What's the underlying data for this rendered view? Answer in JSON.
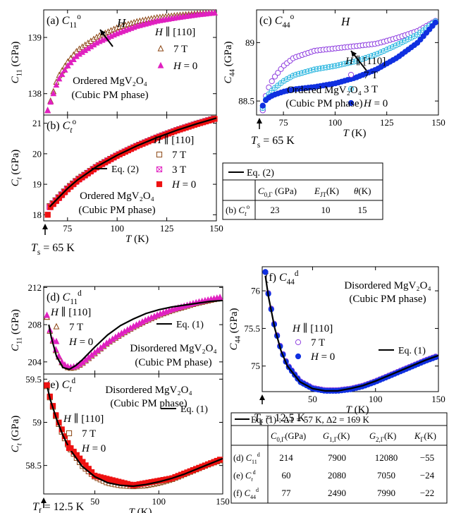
{
  "chart_data": [
    {
      "id": "a",
      "type": "scatter",
      "panel_label": "(a)",
      "symbol": "C",
      "symbol_sub": "11",
      "symbol_sup": "o",
      "ylabel": "C",
      "ylabel_sub": "11",
      "ylabel_unit": "(GPa)",
      "xlim": [
        63,
        150
      ],
      "ylim": [
        137.62,
        139.49
      ],
      "xticks": [],
      "yticks": [
        138,
        139
      ],
      "legend_title": "H ∥ [110]",
      "legend": [
        "7 T",
        "H = 0"
      ],
      "annotations": [
        "Ordered MgV₂O₄",
        "(Cubic PM phase)",
        "H"
      ],
      "series": [
        {
          "name": "7 T",
          "marker": "triangle-open",
          "color": "#8b4513",
          "x": [
            65,
            70,
            75,
            80,
            90,
            100,
            110,
            120,
            130,
            140,
            150
          ],
          "y": [
            137.7,
            138.28,
            138.56,
            138.77,
            139.01,
            139.17,
            139.28,
            139.35,
            139.39,
            139.42,
            139.44
          ]
        },
        {
          "name": "H = 0",
          "marker": "triangle-filled",
          "color": "#e020c0",
          "x": [
            65,
            70,
            75,
            80,
            90,
            100,
            110,
            120,
            130,
            140,
            150
          ],
          "y": [
            137.7,
            138.22,
            138.49,
            138.68,
            138.91,
            139.07,
            139.2,
            139.29,
            139.35,
            139.4,
            139.44
          ]
        }
      ]
    },
    {
      "id": "b",
      "type": "scatter",
      "panel_label": "(b)",
      "symbol": "C",
      "symbol_sub": "t",
      "symbol_sup": "o",
      "ylabel": "C",
      "ylabel_sub": "t",
      "ylabel_unit": "(GPa)",
      "xlim": [
        63,
        150
      ],
      "ylim": [
        17.8,
        21.27
      ],
      "xticks": [
        75,
        100,
        125,
        150
      ],
      "yticks": [
        18,
        19,
        20,
        21
      ],
      "xlabel": "T",
      "xlabel_unit": "(K)",
      "legend_title": "H ∥ [110]",
      "legend": [
        "7 T",
        "3 T",
        "H = 0"
      ],
      "fit_label": "Eq. (2)",
      "annotations": [
        "Ordered MgV₂O₄",
        "(Cubic PM phase)"
      ],
      "marker_text": "Tₛ = 65 K",
      "series": [
        {
          "name": "7 T",
          "marker": "square-open",
          "color": "#8b4513",
          "x": [
            66,
            70,
            75,
            80,
            90,
            100,
            110,
            120,
            130,
            140,
            150
          ],
          "y": [
            18.28,
            18.55,
            18.88,
            19.16,
            19.6,
            19.96,
            20.27,
            20.54,
            20.78,
            20.99,
            21.18
          ]
        },
        {
          "name": "3 T",
          "marker": "square-cross",
          "color": "#e020c0",
          "x": [
            66,
            70,
            75,
            80,
            90,
            100,
            110,
            120,
            130,
            140,
            150
          ],
          "y": [
            18.25,
            18.52,
            18.85,
            19.13,
            19.58,
            19.95,
            20.26,
            20.53,
            20.77,
            20.98,
            21.17
          ]
        },
        {
          "name": "H = 0",
          "marker": "square-filled",
          "color": "#ee1111",
          "x": [
            65,
            66,
            70,
            75,
            80,
            90,
            100,
            110,
            120,
            130,
            140,
            150
          ],
          "y": [
            18.0,
            18.22,
            18.5,
            18.83,
            19.12,
            19.57,
            19.94,
            20.25,
            20.52,
            20.76,
            20.97,
            21.16
          ]
        },
        {
          "name": "Eq. (2)",
          "marker": "line",
          "color": "#000000",
          "x": [
            66,
            70,
            75,
            80,
            90,
            100,
            110,
            120,
            130,
            140,
            150
          ],
          "y": [
            18.26,
            18.53,
            18.86,
            19.14,
            19.59,
            19.95,
            20.26,
            20.53,
            20.77,
            20.98,
            21.17
          ]
        }
      ]
    },
    {
      "id": "c",
      "type": "scatter",
      "panel_label": "(c)",
      "symbol": "C",
      "symbol_sub": "44",
      "symbol_sup": "o",
      "ylabel": "C",
      "ylabel_sub": "44",
      "ylabel_unit": "(GPa)",
      "xlim": [
        62,
        150
      ],
      "ylim": [
        88.38,
        89.28
      ],
      "xticks": [
        75,
        100,
        125,
        150
      ],
      "yticks": [
        88.5,
        89.0
      ],
      "xlabel": "T",
      "xlabel_unit": "(K)",
      "legend_title": "H ∥ [110]",
      "legend": [
        "7 T",
        "3 T",
        "H = 0"
      ],
      "annotations": [
        "Ordered MgV₂O₄",
        "(Cubic PM phase)",
        "H"
      ],
      "marker_text": "Tₛ = 65 K",
      "series": [
        {
          "name": "7 T",
          "marker": "circle-open",
          "color": "#9040e0",
          "x": [
            65,
            66,
            68,
            70,
            75,
            80,
            90,
            100,
            110,
            120,
            130,
            140,
            150
          ],
          "y": [
            88.42,
            88.52,
            88.62,
            88.69,
            88.8,
            88.87,
            88.93,
            88.95,
            88.97,
            88.99,
            89.04,
            89.1,
            89.2
          ]
        },
        {
          "name": "3 T",
          "marker": "circle-cross",
          "color": "#30b8e0",
          "x": [
            65,
            66,
            68,
            70,
            75,
            80,
            90,
            100,
            110,
            120,
            130,
            140,
            150
          ],
          "y": [
            88.44,
            88.5,
            88.56,
            88.6,
            88.67,
            88.72,
            88.77,
            88.8,
            88.84,
            88.9,
            88.98,
            89.07,
            89.2
          ]
        },
        {
          "name": "H = 0",
          "marker": "circle-filled",
          "color": "#1030e0",
          "x": [
            65,
            66,
            68,
            70,
            75,
            80,
            90,
            100,
            110,
            120,
            130,
            140,
            150
          ],
          "y": [
            88.46,
            88.5,
            88.53,
            88.55,
            88.58,
            88.6,
            88.62,
            88.65,
            88.7,
            88.77,
            88.87,
            89.0,
            89.2
          ]
        }
      ]
    },
    {
      "id": "d",
      "type": "scatter",
      "panel_label": "(d)",
      "symbol": "C",
      "symbol_sub": "11",
      "symbol_sup": "d",
      "ylabel": "C",
      "ylabel_sub": "11",
      "ylabel_unit": "(GPa)",
      "xlim": [
        10,
        150
      ],
      "ylim": [
        202.7,
        212.1
      ],
      "xticks": [],
      "yticks": [
        204,
        208,
        212
      ],
      "legend_title": "H ∥ [110]",
      "legend": [
        "7 T",
        "H = 0"
      ],
      "fit_label": "Eq. (1)",
      "annotations": [
        "Disordered MgV₂O₄",
        "(Cubic PM phase)"
      ],
      "series": [
        {
          "name": "7 T",
          "marker": "triangle-open",
          "color": "#8b4513",
          "x": [
            12.5,
            15,
            20,
            25,
            30,
            35,
            40,
            50,
            60,
            70,
            80,
            90,
            100,
            110,
            120,
            130,
            140,
            150
          ],
          "y": [
            208.8,
            207.2,
            205.0,
            203.7,
            203.3,
            203.4,
            203.8,
            204.9,
            206.0,
            206.9,
            207.7,
            208.4,
            209.0,
            209.5,
            209.9,
            210.3,
            210.6,
            210.9
          ]
        },
        {
          "name": "H = 0",
          "marker": "triangle-filled",
          "color": "#e020c0",
          "x": [
            12.5,
            15,
            20,
            25,
            30,
            35,
            40,
            50,
            60,
            70,
            80,
            90,
            100,
            110,
            120,
            130,
            140,
            150
          ],
          "y": [
            209.0,
            207.3,
            205.1,
            203.8,
            203.4,
            203.5,
            203.9,
            205.0,
            206.1,
            207.0,
            207.8,
            208.5,
            209.1,
            209.6,
            210.0,
            210.4,
            210.7,
            211.0
          ]
        },
        {
          "name": "Eq. (1)",
          "marker": "line",
          "color": "#000000",
          "x": [
            14,
            16,
            20,
            25,
            30,
            35,
            40,
            50,
            60,
            70,
            80,
            90,
            100,
            110,
            120,
            130,
            140,
            150
          ],
          "y": [
            208.0,
            206.6,
            204.6,
            203.4,
            203.2,
            203.6,
            204.2,
            205.6,
            206.9,
            207.9,
            208.6,
            209.2,
            209.6,
            209.9,
            210.1,
            210.3,
            210.5,
            210.6
          ]
        }
      ]
    },
    {
      "id": "e",
      "type": "scatter",
      "panel_label": "(e)",
      "symbol": "C",
      "symbol_sub": "t",
      "symbol_sup": "d",
      "ylabel": "C",
      "ylabel_sub": "t",
      "ylabel_unit": "(GPa)",
      "xlim": [
        10,
        150
      ],
      "ylim": [
        58.17,
        59.56
      ],
      "xticks": [
        50,
        100,
        150
      ],
      "yticks": [
        58.5,
        59.0,
        59.5
      ],
      "xlabel": "T",
      "xlabel_unit": "(K)",
      "legend_title": "H ∥ [110]",
      "legend": [
        "7 T",
        "H = 0"
      ],
      "fit_label": "Eq. (1)",
      "annotations": [
        "Disordered MgV₂O₄",
        "(Cubic PM phase)"
      ],
      "marker_text": "T_f = 12.5 K",
      "series": [
        {
          "name": "7 T",
          "marker": "square-open",
          "color": "#8b4513",
          "x": [
            12.5,
            15,
            20,
            25,
            30,
            40,
            50,
            60,
            70,
            80,
            90,
            100,
            110,
            120,
            130,
            140,
            150
          ],
          "y": [
            59.42,
            59.28,
            59.05,
            58.86,
            58.71,
            58.5,
            58.37,
            58.3,
            58.27,
            58.26,
            58.27,
            58.3,
            58.34,
            58.4,
            58.46,
            58.52,
            58.57
          ]
        },
        {
          "name": "H = 0",
          "marker": "square-filled",
          "color": "#ee1111",
          "x": [
            12.5,
            15,
            20,
            30,
            50,
            80,
            110,
            150
          ],
          "y": [
            59.43,
            59.29,
            59.06,
            58.72,
            58.38,
            58.27,
            58.35,
            58.58
          ]
        },
        {
          "name": "Eq. (1)",
          "marker": "line",
          "color": "#000000",
          "x": [
            13,
            15,
            20,
            25,
            30,
            40,
            50,
            60,
            70,
            80,
            90,
            100,
            110,
            120,
            130,
            140,
            150
          ],
          "y": [
            59.4,
            59.27,
            59.04,
            58.85,
            58.7,
            58.49,
            58.37,
            58.3,
            58.27,
            58.26,
            58.28,
            58.31,
            58.35,
            58.4,
            58.46,
            58.52,
            58.58
          ]
        }
      ]
    },
    {
      "id": "f",
      "type": "scatter",
      "panel_label": "(f)",
      "symbol": "C",
      "symbol_sub": "44",
      "symbol_sup": "d",
      "ylabel": "C",
      "ylabel_sub": "44",
      "ylabel_unit": "(GPa)",
      "xlim": [
        10,
        150
      ],
      "ylim": [
        74.66,
        76.32
      ],
      "xticks": [
        50,
        100,
        150
      ],
      "yticks": [
        75.0,
        75.5,
        76.0
      ],
      "xlabel": "T",
      "xlabel_unit": "(K)",
      "legend_title": "H ∥ [110]",
      "legend": [
        "7 T",
        "H = 0"
      ],
      "fit_label": "Eq. (1)",
      "annotations": [
        "Disordered MgV₂O₄",
        "(Cubic PM phase)"
      ],
      "marker_text": "T_f = 12.5 K",
      "series": [
        {
          "name": "7 T",
          "marker": "circle-open",
          "color": "#9040e0",
          "x": [
            12.5,
            15,
            20,
            25,
            30,
            40,
            50,
            60,
            70,
            80,
            90,
            100,
            110,
            120,
            130,
            140,
            150
          ],
          "y": [
            76.25,
            75.95,
            75.52,
            75.22,
            75.02,
            74.8,
            74.71,
            74.68,
            74.68,
            74.7,
            74.74,
            74.8,
            74.87,
            74.94,
            75.01,
            75.08,
            75.14
          ]
        },
        {
          "name": "H = 0",
          "marker": "circle-filled",
          "color": "#1030e0",
          "x": [
            12.5,
            15,
            20,
            25,
            30,
            40,
            50,
            60,
            70,
            80,
            90,
            100,
            110,
            120,
            130,
            140,
            150
          ],
          "y": [
            76.25,
            75.94,
            75.51,
            75.21,
            75.01,
            74.79,
            74.7,
            74.67,
            74.67,
            74.69,
            74.73,
            74.79,
            74.86,
            74.93,
            75.0,
            75.07,
            75.13
          ]
        },
        {
          "name": "Eq. (1)",
          "marker": "line",
          "color": "#000000",
          "x": [
            12.5,
            15,
            20,
            25,
            30,
            40,
            50,
            60,
            70,
            80,
            90,
            100,
            110,
            120,
            130,
            140,
            150
          ],
          "y": [
            76.2,
            75.92,
            75.5,
            75.2,
            75.0,
            74.79,
            74.7,
            74.67,
            74.67,
            74.7,
            74.74,
            74.8,
            74.87,
            74.94,
            75.01,
            75.08,
            75.14
          ]
        }
      ]
    },
    {
      "id": "table-top",
      "type": "table",
      "legend": "Eq. (2)",
      "columns": [
        "",
        "C0,Γ (GPa)",
        "EJT (K)",
        "θ (K)"
      ],
      "rows": [
        [
          "(b) C_t^o",
          "23",
          "10",
          "15"
        ]
      ]
    },
    {
      "id": "table-bottom",
      "type": "table",
      "legend": "Eq. (1) : Δ1 = 57 K, Δ2 = 169 K",
      "columns": [
        "",
        "C0,Γ (GPa)",
        "G1,Γ (K)",
        "G2,Γ (K)",
        "KΓ (K)"
      ],
      "rows": [
        [
          "(d) C11^d",
          "214",
          "7900",
          "12080",
          "−55"
        ],
        [
          "(e) C_t^d",
          "60",
          "2080",
          "7050",
          "−24"
        ],
        [
          "(f) C44^d",
          "77",
          "2490",
          "7990",
          "−22"
        ]
      ]
    }
  ]
}
